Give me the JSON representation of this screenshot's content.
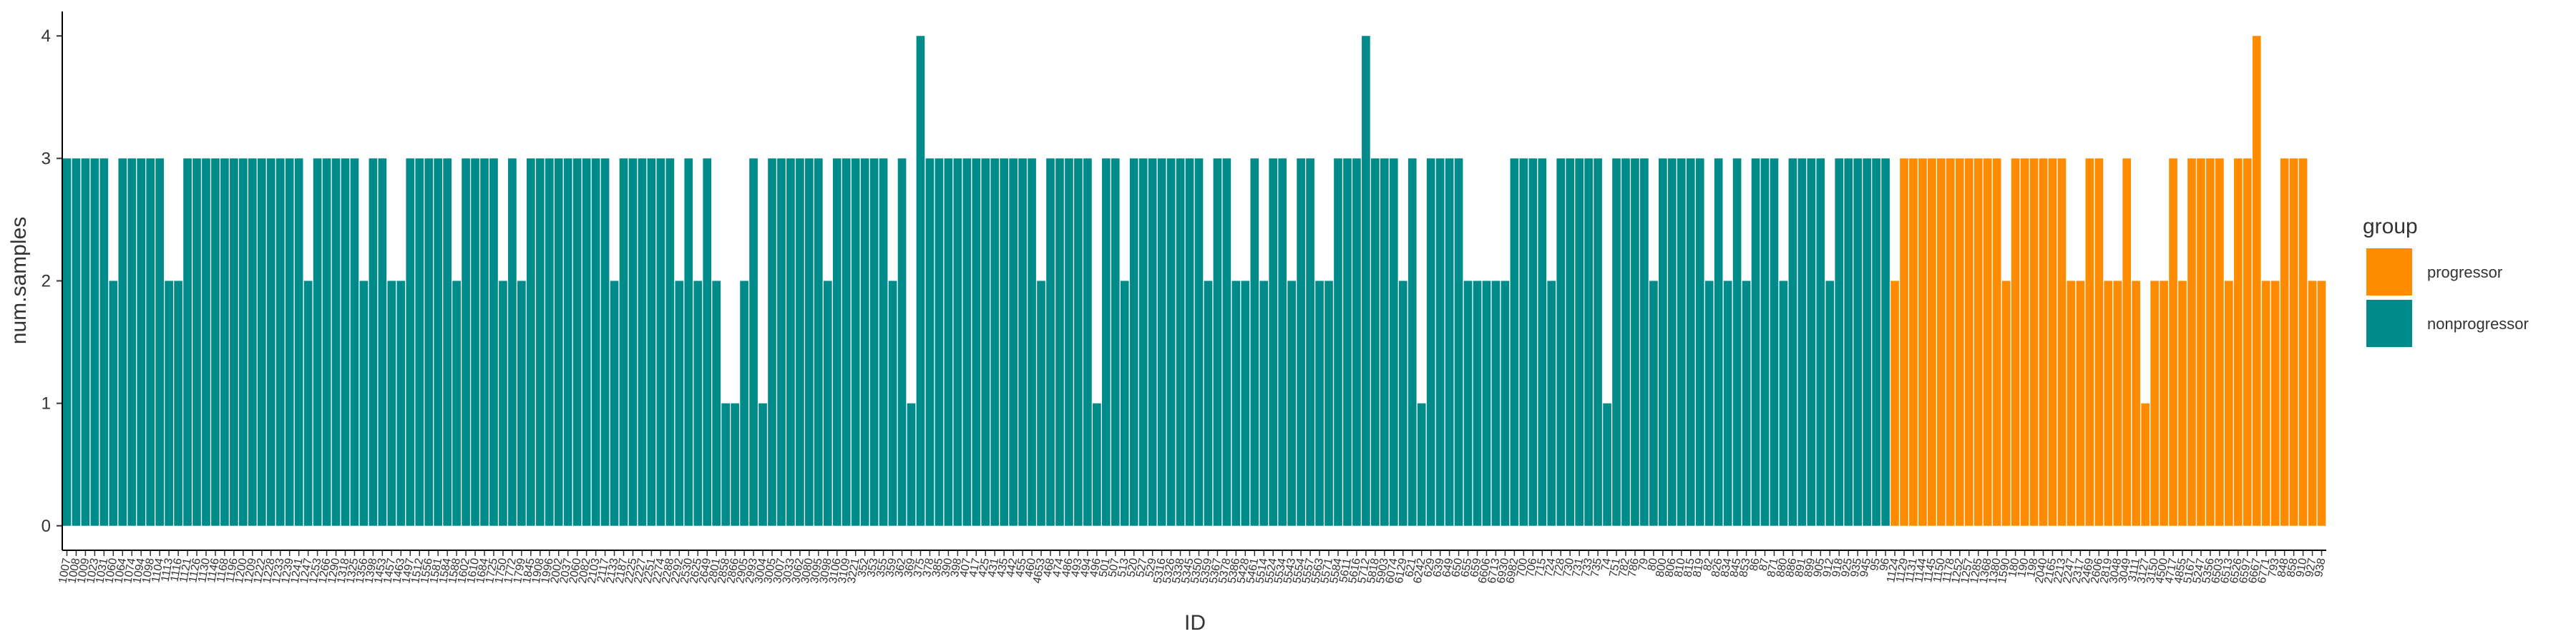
{
  "chart_data": {
    "type": "bar",
    "x_label": "ID",
    "y_label": "num.samples",
    "ylim": [
      -0.2,
      4.2
    ],
    "yticks": [
      0,
      1,
      2,
      3,
      4
    ],
    "legend_title": "group",
    "legend_position": "right",
    "series": [
      {
        "name": "progressor",
        "color": "#FF8C00",
        "categories": [
          "1124",
          "1129",
          "1131",
          "1144",
          "1145",
          "1150",
          "1178",
          "1252",
          "1257",
          "1285",
          "1368",
          "1380",
          "1590",
          "180",
          "190",
          "198",
          "2040",
          "2165",
          "2213",
          "2247",
          "2317",
          "2469",
          "2606",
          "2819",
          "3048",
          "3049",
          "3111",
          "3127",
          "3150",
          "4500",
          "4717",
          "4855",
          "5167",
          "5247",
          "5356",
          "6503",
          "6513",
          "6526",
          "6597",
          "6667",
          "6771",
          "793",
          "848",
          "858",
          "910",
          "927",
          "938"
        ],
        "values": [
          2,
          3,
          3,
          3,
          3,
          3,
          3,
          3,
          3,
          3,
          3,
          3,
          2,
          3,
          3,
          3,
          3,
          3,
          3,
          2,
          2,
          3,
          3,
          2,
          2,
          3,
          2,
          1,
          2,
          2,
          3,
          2,
          3,
          3,
          3,
          3,
          2,
          3,
          3,
          4,
          2,
          2,
          3,
          3,
          3,
          2,
          2
        ]
      },
      {
        "name": "nonprogressor",
        "color": "#008B8B",
        "categories": [
          "1007",
          "1008",
          "1009",
          "1023",
          "1031",
          "1060",
          "1064",
          "1074",
          "1094",
          "1098",
          "1104",
          "1113",
          "1116",
          "1121",
          "1126",
          "1130",
          "1146",
          "1168",
          "1196",
          "1200",
          "1209",
          "1222",
          "1228",
          "1233",
          "1239",
          "1241",
          "1247",
          "1253",
          "1266",
          "1290",
          "1318",
          "1325",
          "1356",
          "1398",
          "1453",
          "1457",
          "1463",
          "1497",
          "1512",
          "1556",
          "1581",
          "1584",
          "1588",
          "1602",
          "1610",
          "1684",
          "1725",
          "1750",
          "1772",
          "1799",
          "1845",
          "1908",
          "1996",
          "2002",
          "2037",
          "2060",
          "2082",
          "2103",
          "2117",
          "2133",
          "2187",
          "2225",
          "2227",
          "2251",
          "2274",
          "2288",
          "2292",
          "2530",
          "2625",
          "2649",
          "2801",
          "2858",
          "2866",
          "2905",
          "2993",
          "3004",
          "3005",
          "3007",
          "3033",
          "3062",
          "3080",
          "3095",
          "3098",
          "3106",
          "3109",
          "3221",
          "352",
          "353",
          "355",
          "359",
          "362",
          "369",
          "375",
          "378",
          "385",
          "390",
          "398",
          "407",
          "417",
          "425",
          "431",
          "435",
          "442",
          "455",
          "460",
          "4653",
          "468",
          "474",
          "486",
          "493",
          "494",
          "496",
          "501",
          "507",
          "513",
          "520",
          "527",
          "529",
          "5316",
          "5326",
          "5338",
          "5345",
          "5350",
          "5359",
          "5367",
          "5378",
          "5386",
          "5428",
          "5461",
          "5514",
          "5524",
          "5534",
          "5543",
          "5554",
          "5557",
          "5563",
          "5571",
          "5584",
          "5611",
          "5616",
          "5712",
          "5818",
          "5903",
          "6074",
          "6129",
          "621",
          "6242",
          "629",
          "639",
          "649",
          "650",
          "655",
          "659",
          "6606",
          "6713",
          "6930",
          "6982",
          "700",
          "706",
          "715",
          "724",
          "728",
          "730",
          "731",
          "733",
          "735",
          "74",
          "751",
          "782",
          "786",
          "79",
          "80",
          "800",
          "806",
          "810",
          "815",
          "819",
          "82",
          "826",
          "834",
          "845",
          "853",
          "86",
          "87",
          "871",
          "880",
          "886",
          "891",
          "899",
          "905",
          "912",
          "918",
          "925",
          "935",
          "945",
          "95",
          "96"
        ],
        "values": [
          3,
          3,
          3,
          3,
          3,
          2,
          3,
          3,
          3,
          3,
          3,
          2,
          2,
          3,
          3,
          3,
          3,
          3,
          3,
          3,
          3,
          3,
          3,
          3,
          3,
          3,
          2,
          3,
          3,
          3,
          3,
          3,
          2,
          3,
          3,
          2,
          2,
          3,
          3,
          3,
          3,
          3,
          2,
          3,
          3,
          3,
          3,
          2,
          3,
          2,
          3,
          3,
          3,
          3,
          3,
          3,
          3,
          3,
          3,
          2,
          3,
          3,
          3,
          3,
          3,
          3,
          2,
          3,
          2,
          3,
          2,
          1,
          1,
          2,
          3,
          1,
          3,
          3,
          3,
          3,
          3,
          3,
          2,
          3,
          3,
          3,
          3,
          3,
          3,
          2,
          3,
          1,
          4,
          3,
          3,
          3,
          3,
          3,
          3,
          3,
          3,
          3,
          3,
          3,
          3,
          2,
          3,
          3,
          3,
          3,
          3,
          1,
          3,
          3,
          2,
          3,
          3,
          3,
          3,
          3,
          3,
          3,
          3,
          2,
          3,
          3,
          2,
          2,
          3,
          2,
          3,
          3,
          2,
          3,
          3,
          2,
          2,
          3,
          3,
          3,
          4,
          3,
          3,
          3,
          2,
          3,
          1,
          3,
          3,
          3,
          3,
          2,
          2,
          2,
          2,
          2,
          3,
          3,
          3,
          3,
          2,
          3,
          3,
          3,
          3,
          3,
          1,
          3,
          3,
          3,
          3,
          2,
          3,
          3,
          3,
          3,
          3,
          2,
          3,
          2,
          3,
          2,
          3,
          3,
          3,
          2,
          3,
          3,
          3,
          3,
          2,
          3,
          3,
          3,
          3,
          3,
          3
        ]
      }
    ]
  }
}
